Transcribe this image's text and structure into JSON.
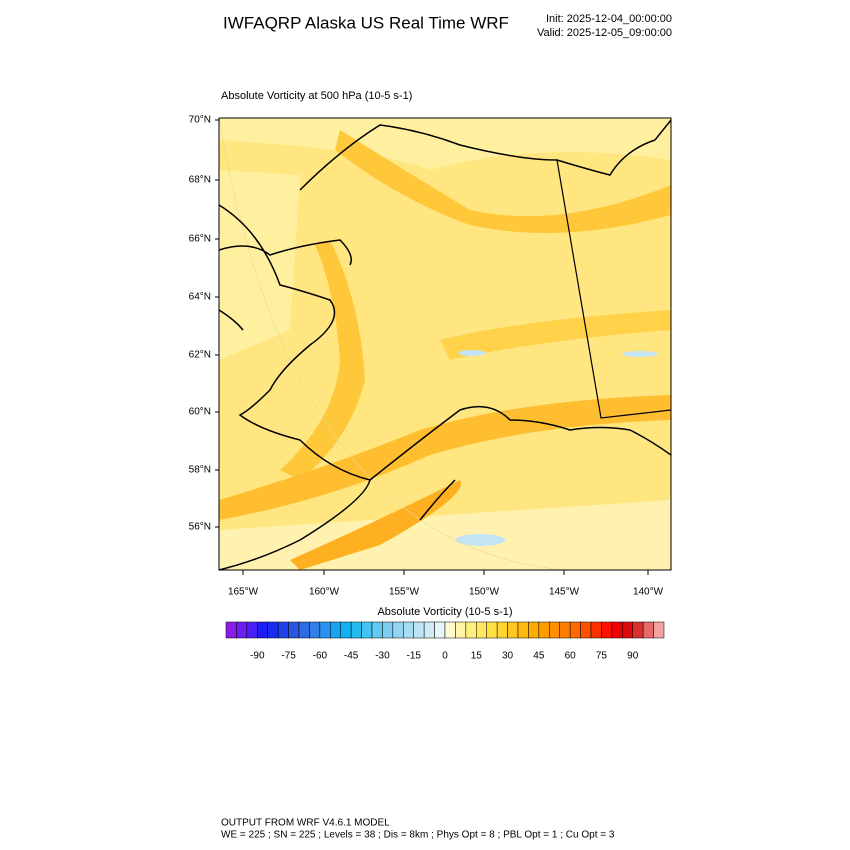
{
  "header": {
    "title": "IWFAQRP Alaska US Real Time WRF",
    "init": "Init: 2025-12-04_00:00:00",
    "valid": "Valid: 2025-12-05_09:00:00"
  },
  "map": {
    "subtitle": "Absolute Vorticity at 500 hPa   (10-5 s-1)",
    "lat_labels": [
      "70°N",
      "68°N",
      "66°N",
      "64°N",
      "62°N",
      "60°N",
      "58°N",
      "56°N"
    ],
    "lon_labels": [
      "165°W",
      "160°W",
      "155°W",
      "150°W",
      "145°W",
      "140°W"
    ]
  },
  "colorbar": {
    "title": "Absolute Vorticity  (10-5 s-1)",
    "lim": [
      -105,
      105
    ],
    "ticks": [
      -90,
      -75,
      -60,
      -45,
      -30,
      -15,
      0,
      15,
      30,
      45,
      60,
      75,
      90
    ],
    "colors": [
      "#8a1ee8",
      "#6a1ef2",
      "#4a1ef6",
      "#1e1ef8",
      "#1a2cf0",
      "#1f40e6",
      "#2a56e0",
      "#2f6ae2",
      "#3080e8",
      "#2a92f0",
      "#18a4f4",
      "#10b2f0",
      "#22bcf0",
      "#44c4f0",
      "#62c9f0",
      "#7ccff0",
      "#92d5f0",
      "#a8dcf0",
      "#bce4f2",
      "#cfeaf5",
      "#e6f5fa",
      "#fffad0",
      "#fff5a4",
      "#ffef80",
      "#ffe860",
      "#ffe040",
      "#ffd530",
      "#ffc820",
      "#ffba10",
      "#ffac00",
      "#ff9e00",
      "#ff8e00",
      "#ff7e00",
      "#ff6a00",
      "#ff5000",
      "#ff3000",
      "#ff1000",
      "#f00000",
      "#dc0a0a",
      "#d83030",
      "#e46a6a",
      "#f4a0a0"
    ]
  },
  "footer": {
    "line1": "OUTPUT FROM WRF V4.6.1 MODEL",
    "line2": "WE = 225 ; SN = 225 ; Levels = 38 ; Dis = 8km ; Phys Opt = 8 ; PBL Opt = 1 ; Cu Opt = 3"
  }
}
